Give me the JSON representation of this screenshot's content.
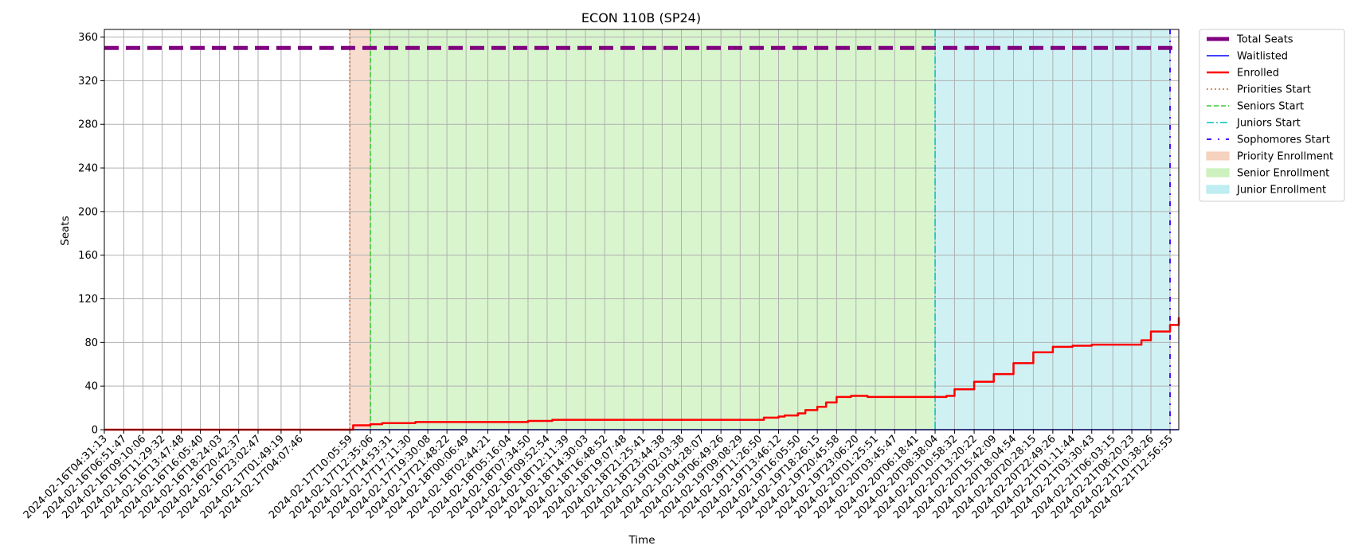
{
  "chart_data": {
    "type": "line",
    "title": "ECON 110B (SP24)",
    "xlabel": "Time",
    "ylabel": "Seats",
    "ylim": [
      0,
      367
    ],
    "yticks": [
      0,
      40,
      80,
      120,
      160,
      200,
      240,
      280,
      320,
      360
    ],
    "grid": true,
    "legend_position": "outside-top-right",
    "x_start": "2024-02-16T04:31:13",
    "x_end": "2024-02-21T14:00:00",
    "xticks": [
      "2024-02-16T04:31:13",
      "2024-02-16T06:51:47",
      "2024-02-16T09:10:06",
      "2024-02-16T11:29:32",
      "2024-02-16T13:47:48",
      "2024-02-16T16:05:40",
      "2024-02-16T18:24:03",
      "2024-02-16T20:42:37",
      "2024-02-16T23:02:47",
      "2024-02-17T01:49:19",
      "2024-02-17T04:07:46",
      "2024-02-17T10:05:59",
      "2024-02-17T12:35:06",
      "2024-02-17T14:53:31",
      "2024-02-17T17:11:30",
      "2024-02-17T19:30:08",
      "2024-02-17T21:48:22",
      "2024-02-18T00:06:49",
      "2024-02-18T02:44:21",
      "2024-02-18T05:16:04",
      "2024-02-18T07:34:50",
      "2024-02-18T09:52:54",
      "2024-02-18T12:11:39",
      "2024-02-18T14:30:03",
      "2024-02-18T16:48:52",
      "2024-02-18T19:07:48",
      "2024-02-18T21:25:41",
      "2024-02-18T23:44:38",
      "2024-02-19T02:03:38",
      "2024-02-19T04:28:07",
      "2024-02-19T06:49:26",
      "2024-02-19T09:08:29",
      "2024-02-19T11:26:50",
      "2024-02-19T13:46:12",
      "2024-02-19T16:05:50",
      "2024-02-19T18:26:15",
      "2024-02-19T20:45:58",
      "2024-02-19T23:06:20",
      "2024-02-20T01:25:51",
      "2024-02-20T03:45:47",
      "2024-02-20T06:18:41",
      "2024-02-20T08:38:04",
      "2024-02-20T10:58:32",
      "2024-02-20T13:20:22",
      "2024-02-20T15:42:09",
      "2024-02-20T18:04:54",
      "2024-02-20T20:28:15",
      "2024-02-20T22:49:26",
      "2024-02-21T01:11:44",
      "2024-02-21T03:30:43",
      "2024-02-21T06:03:15",
      "2024-02-21T08:20:23",
      "2024-02-21T10:38:26",
      "2024-02-21T12:56:55"
    ],
    "colors": {
      "total": "#800080",
      "waitlisted": "#0000ff",
      "enrolled": "#ff0000",
      "priorities": "#d2691e",
      "seniors": "#32cd32",
      "juniors": "#00bfbf",
      "sophomores": "#4b0bff",
      "priority_fill": "#f5cbb5",
      "senior_fill": "#c4f0b4",
      "junior_fill": "#b5eaee"
    },
    "series": [
      {
        "name": "Total Seats",
        "style": "dashed-thick",
        "x": [
          "2024-02-16T04:31:13",
          "2024-02-21T14:00:00"
        ],
        "values": [
          350,
          350
        ]
      },
      {
        "name": "Waitlisted",
        "style": "solid-thin",
        "x": [
          "2024-02-16T04:31:13",
          "2024-02-21T14:00:00"
        ],
        "values": [
          0,
          0
        ]
      },
      {
        "name": "Enrolled",
        "style": "solid",
        "x": [
          "2024-02-16T04:31:13",
          "2024-02-17T10:05:59",
          "2024-02-17T10:30:00",
          "2024-02-17T12:35:06",
          "2024-02-17T14:00:00",
          "2024-02-17T17:11:30",
          "2024-02-17T18:00:00",
          "2024-02-17T21:48:22",
          "2024-02-18T07:34:50",
          "2024-02-18T09:52:54",
          "2024-02-18T10:30:00",
          "2024-02-19T11:26:50",
          "2024-02-19T12:00:00",
          "2024-02-19T13:46:12",
          "2024-02-19T14:30:00",
          "2024-02-19T16:05:50",
          "2024-02-19T17:00:00",
          "2024-02-19T18:26:15",
          "2024-02-19T19:30:00",
          "2024-02-19T20:45:58",
          "2024-02-19T22:30:00",
          "2024-02-20T00:30:00",
          "2024-02-20T08:38:04",
          "2024-02-20T10:00:00",
          "2024-02-20T10:58:32",
          "2024-02-20T13:20:22",
          "2024-02-20T15:42:09",
          "2024-02-20T18:04:54",
          "2024-02-20T20:28:15",
          "2024-02-20T22:49:26",
          "2024-02-21T01:11:44",
          "2024-02-21T03:30:43",
          "2024-02-21T06:03:15",
          "2024-02-21T08:20:23",
          "2024-02-21T09:30:00",
          "2024-02-21T10:38:26",
          "2024-02-21T12:56:55",
          "2024-02-21T14:00:00"
        ],
        "values": [
          0,
          0,
          4,
          5,
          6,
          6,
          7,
          7,
          8,
          8,
          9,
          9,
          11,
          12,
          13,
          15,
          18,
          21,
          25,
          30,
          31,
          30,
          30,
          31,
          37,
          44,
          51,
          61,
          71,
          76,
          77,
          78,
          78,
          78,
          82,
          90,
          96,
          103
        ]
      }
    ],
    "vlines": [
      {
        "name": "Priorities Start",
        "x": "2024-02-17T10:05:59",
        "style": "dotted"
      },
      {
        "name": "Seniors Start",
        "x": "2024-02-17T12:35:06",
        "style": "dashed"
      },
      {
        "name": "Juniors Start",
        "x": "2024-02-20T08:38:04",
        "style": "dashdot"
      },
      {
        "name": "Sophomores Start",
        "x": "2024-02-21T12:56:55",
        "style": "loose-dashdot"
      }
    ],
    "spans": [
      {
        "name": "Priority Enrollment",
        "start": "2024-02-17T10:05:59",
        "end": "2024-02-17T12:35:06"
      },
      {
        "name": "Senior Enrollment",
        "start": "2024-02-17T12:35:06",
        "end": "2024-02-20T08:38:04"
      },
      {
        "name": "Junior Enrollment",
        "start": "2024-02-20T08:38:04",
        "end": "2024-02-21T12:56:55"
      }
    ],
    "legend": [
      "Total Seats",
      "Waitlisted",
      "Enrolled",
      "Priorities Start",
      "Seniors Start",
      "Juniors Start",
      "Sophomores Start",
      "Priority Enrollment",
      "Senior Enrollment",
      "Junior Enrollment"
    ]
  }
}
